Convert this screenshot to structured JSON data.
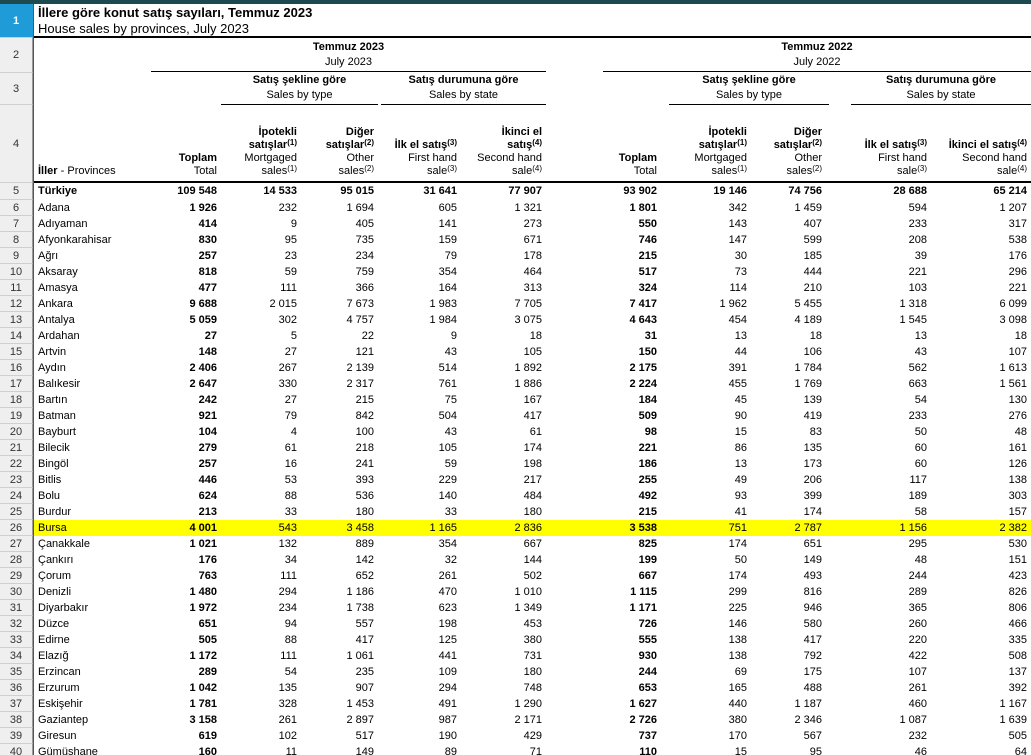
{
  "title": {
    "tr": "İllere göre konut satış sayıları, Temmuz 2023",
    "en": "House sales by provinces, July 2023"
  },
  "periods": [
    {
      "tr": "Temmuz 2023",
      "en": "July 2023"
    },
    {
      "tr": "Temmuz 2022",
      "en": "July 2022"
    }
  ],
  "groups": [
    {
      "tr": "Satış şekline göre",
      "en": "Sales by type"
    },
    {
      "tr": "Satış durumuna göre",
      "en": "Sales by state"
    },
    {
      "tr": "Satış şekline göre",
      "en": "Sales by type"
    },
    {
      "tr": "Satış durumuna göre",
      "en": "Sales by state"
    }
  ],
  "columns": {
    "province_header_html": "<b>İller</b> - Provinces",
    "headers_html": [
      {
        "tr": "Toplam",
        "en": "Total"
      },
      {
        "tr": "İpotekli<br>satışlar<sup>(1)</sup>",
        "en": "Mortgaged<br>sales<sup>(1)</sup>"
      },
      {
        "tr": "Diğer<br>satışlar<sup>(2)</sup>",
        "en": "Other<br>sales<sup>(2)</sup>"
      },
      {
        "tr": "İlk el satış<sup>(3)</sup>",
        "en": "First hand<br>sale<sup>(3)</sup>"
      },
      {
        "tr": "İkinci el<br>satış<sup>(4)</sup>",
        "en": "Second hand<br>sale<sup>(4)</sup>"
      },
      {
        "tr": "Toplam",
        "en": "Total"
      },
      {
        "tr": "İpotekli<br>satışlar<sup>(1)</sup>",
        "en": "Mortgaged<br>sales<sup>(1)</sup>"
      },
      {
        "tr": "Diğer<br>satışlar<sup>(2)</sup>",
        "en": "Other<br>sales<sup>(2)</sup>"
      },
      {
        "tr": "İlk el satış<sup>(3)</sup>",
        "en": "First hand<br>sale<sup>(3)</sup>"
      },
      {
        "tr": "İkinci el satış<sup>(4)</sup>",
        "en": "Second hand<br>sale<sup>(4)</sup>"
      }
    ]
  },
  "gutter": {
    "header_row_numbers": [
      "1",
      "2",
      "3",
      "4"
    ],
    "selected_row": "1"
  },
  "rows": [
    {
      "num": "5",
      "name": "Türkiye",
      "bold": true,
      "values": [
        "109 548",
        "14 533",
        "95 015",
        "31 641",
        "77 907",
        "93 902",
        "19 146",
        "74 756",
        "28 688",
        "65 214"
      ]
    },
    {
      "num": "6",
      "name": "Adana",
      "values": [
        "1 926",
        "232",
        "1 694",
        "605",
        "1 321",
        "1 801",
        "342",
        "1 459",
        "594",
        "1 207"
      ]
    },
    {
      "num": "7",
      "name": "Adıyaman",
      "values": [
        "414",
        "9",
        "405",
        "141",
        "273",
        "550",
        "143",
        "407",
        "233",
        "317"
      ]
    },
    {
      "num": "8",
      "name": "Afyonkarahisar",
      "values": [
        "830",
        "95",
        "735",
        "159",
        "671",
        "746",
        "147",
        "599",
        "208",
        "538"
      ]
    },
    {
      "num": "9",
      "name": "Ağrı",
      "values": [
        "257",
        "23",
        "234",
        "79",
        "178",
        "215",
        "30",
        "185",
        "39",
        "176"
      ]
    },
    {
      "num": "10",
      "name": "Aksaray",
      "values": [
        "818",
        "59",
        "759",
        "354",
        "464",
        "517",
        "73",
        "444",
        "221",
        "296"
      ]
    },
    {
      "num": "11",
      "name": "Amasya",
      "values": [
        "477",
        "111",
        "366",
        "164",
        "313",
        "324",
        "114",
        "210",
        "103",
        "221"
      ]
    },
    {
      "num": "12",
      "name": "Ankara",
      "values": [
        "9 688",
        "2 015",
        "7 673",
        "1 983",
        "7 705",
        "7 417",
        "1 962",
        "5 455",
        "1 318",
        "6 099"
      ]
    },
    {
      "num": "13",
      "name": "Antalya",
      "values": [
        "5 059",
        "302",
        "4 757",
        "1 984",
        "3 075",
        "4 643",
        "454",
        "4 189",
        "1 545",
        "3 098"
      ]
    },
    {
      "num": "14",
      "name": "Ardahan",
      "values": [
        "27",
        "5",
        "22",
        "9",
        "18",
        "31",
        "13",
        "18",
        "13",
        "18"
      ]
    },
    {
      "num": "15",
      "name": "Artvin",
      "values": [
        "148",
        "27",
        "121",
        "43",
        "105",
        "150",
        "44",
        "106",
        "43",
        "107"
      ]
    },
    {
      "num": "16",
      "name": "Aydın",
      "values": [
        "2 406",
        "267",
        "2 139",
        "514",
        "1 892",
        "2 175",
        "391",
        "1 784",
        "562",
        "1 613"
      ]
    },
    {
      "num": "17",
      "name": "Balıkesir",
      "values": [
        "2 647",
        "330",
        "2 317",
        "761",
        "1 886",
        "2 224",
        "455",
        "1 769",
        "663",
        "1 561"
      ]
    },
    {
      "num": "18",
      "name": "Bartın",
      "values": [
        "242",
        "27",
        "215",
        "75",
        "167",
        "184",
        "45",
        "139",
        "54",
        "130"
      ]
    },
    {
      "num": "19",
      "name": "Batman",
      "values": [
        "921",
        "79",
        "842",
        "504",
        "417",
        "509",
        "90",
        "419",
        "233",
        "276"
      ]
    },
    {
      "num": "20",
      "name": "Bayburt",
      "values": [
        "104",
        "4",
        "100",
        "43",
        "61",
        "98",
        "15",
        "83",
        "50",
        "48"
      ]
    },
    {
      "num": "21",
      "name": "Bilecik",
      "values": [
        "279",
        "61",
        "218",
        "105",
        "174",
        "221",
        "86",
        "135",
        "60",
        "161"
      ]
    },
    {
      "num": "22",
      "name": "Bingöl",
      "values": [
        "257",
        "16",
        "241",
        "59",
        "198",
        "186",
        "13",
        "173",
        "60",
        "126"
      ]
    },
    {
      "num": "23",
      "name": "Bitlis",
      "values": [
        "446",
        "53",
        "393",
        "229",
        "217",
        "255",
        "49",
        "206",
        "117",
        "138"
      ]
    },
    {
      "num": "24",
      "name": "Bolu",
      "values": [
        "624",
        "88",
        "536",
        "140",
        "484",
        "492",
        "93",
        "399",
        "189",
        "303"
      ]
    },
    {
      "num": "25",
      "name": "Burdur",
      "values": [
        "213",
        "33",
        "180",
        "33",
        "180",
        "215",
        "41",
        "174",
        "58",
        "157"
      ]
    },
    {
      "num": "26",
      "name": "Bursa",
      "highlight": true,
      "values": [
        "4 001",
        "543",
        "3 458",
        "1 165",
        "2 836",
        "3 538",
        "751",
        "2 787",
        "1 156",
        "2 382"
      ]
    },
    {
      "num": "27",
      "name": "Çanakkale",
      "values": [
        "1 021",
        "132",
        "889",
        "354",
        "667",
        "825",
        "174",
        "651",
        "295",
        "530"
      ]
    },
    {
      "num": "28",
      "name": "Çankırı",
      "values": [
        "176",
        "34",
        "142",
        "32",
        "144",
        "199",
        "50",
        "149",
        "48",
        "151"
      ]
    },
    {
      "num": "29",
      "name": "Çorum",
      "values": [
        "763",
        "111",
        "652",
        "261",
        "502",
        "667",
        "174",
        "493",
        "244",
        "423"
      ]
    },
    {
      "num": "30",
      "name": "Denizli",
      "values": [
        "1 480",
        "294",
        "1 186",
        "470",
        "1 010",
        "1 115",
        "299",
        "816",
        "289",
        "826"
      ]
    },
    {
      "num": "31",
      "name": "Diyarbakır",
      "values": [
        "1 972",
        "234",
        "1 738",
        "623",
        "1 349",
        "1 171",
        "225",
        "946",
        "365",
        "806"
      ]
    },
    {
      "num": "32",
      "name": "Düzce",
      "values": [
        "651",
        "94",
        "557",
        "198",
        "453",
        "726",
        "146",
        "580",
        "260",
        "466"
      ]
    },
    {
      "num": "33",
      "name": "Edirne",
      "values": [
        "505",
        "88",
        "417",
        "125",
        "380",
        "555",
        "138",
        "417",
        "220",
        "335"
      ]
    },
    {
      "num": "34",
      "name": "Elazığ",
      "values": [
        "1 172",
        "111",
        "1 061",
        "441",
        "731",
        "930",
        "138",
        "792",
        "422",
        "508"
      ]
    },
    {
      "num": "35",
      "name": "Erzincan",
      "values": [
        "289",
        "54",
        "235",
        "109",
        "180",
        "244",
        "69",
        "175",
        "107",
        "137"
      ]
    },
    {
      "num": "36",
      "name": "Erzurum",
      "values": [
        "1 042",
        "135",
        "907",
        "294",
        "748",
        "653",
        "165",
        "488",
        "261",
        "392"
      ]
    },
    {
      "num": "37",
      "name": "Eskişehir",
      "values": [
        "1 781",
        "328",
        "1 453",
        "491",
        "1 290",
        "1 627",
        "440",
        "1 187",
        "460",
        "1 167"
      ]
    },
    {
      "num": "38",
      "name": "Gaziantep",
      "values": [
        "3 158",
        "261",
        "2 897",
        "987",
        "2 171",
        "2 726",
        "380",
        "2 346",
        "1 087",
        "1 639"
      ]
    },
    {
      "num": "39",
      "name": "Giresun",
      "values": [
        "619",
        "102",
        "517",
        "190",
        "429",
        "737",
        "170",
        "567",
        "232",
        "505"
      ]
    },
    {
      "num": "40",
      "name": "Gümüşhane",
      "values": [
        "160",
        "11",
        "149",
        "89",
        "71",
        "110",
        "15",
        "95",
        "46",
        "64"
      ]
    }
  ],
  "colors": {
    "selected_row_blue": "#1f9cd8",
    "highlight_yellow": "#ffff00",
    "top_bar_teal": "#1c4a50",
    "gutter_gray": "#efefef"
  }
}
